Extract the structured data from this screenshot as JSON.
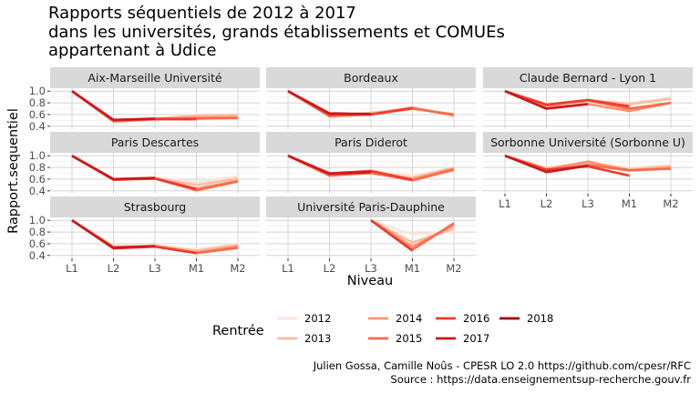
{
  "title_lines": [
    "Rapports séquentiels de 2012 à 2017",
    "dans les universités, grands établissements et COMUEs",
    "appartenant à Udice"
  ],
  "caption_lines": [
    "Julien Gossa, Camille Noûs - CPESR LO 2.0 https://github.com/cpesr/RFC",
    "Source : https://data.enseignementsup-recherche.gouv.fr"
  ],
  "chart_data": {
    "type": "line",
    "title": "Rapports séquentiels de 2012 à 2017 dans les universités, grands établissements et COMUEs appartenant à Udice",
    "xlabel": "Niveau",
    "ylabel": "Rapport.sequentiel",
    "categories": [
      "L1",
      "L2",
      "L3",
      "M1",
      "M2"
    ],
    "y_ticks": [
      "1.0",
      "0.8",
      "0.6",
      "0.4"
    ],
    "y_tick_values": [
      1.0,
      0.8,
      0.6,
      0.4
    ],
    "ylim": [
      0.35,
      1.05
    ],
    "grid": true,
    "legend": {
      "title": "Rentrée",
      "position": "bottom",
      "entries": [
        "2012",
        "2013",
        "2014",
        "2015",
        "2016",
        "2017",
        "2018"
      ],
      "colors": [
        "#fee5d9",
        "#fcbba1",
        "#fc9272",
        "#fb6a4a",
        "#ef3b2c",
        "#cb181d",
        "#99000d"
      ]
    },
    "panels": [
      {
        "name": "Aix-Marseille Université",
        "series": [
          {
            "name": "2012",
            "values": [
              1.0,
              0.47,
              0.52,
              0.6,
              0.6
            ]
          },
          {
            "name": "2013",
            "values": [
              1.0,
              0.49,
              0.53,
              0.58,
              0.59
            ]
          },
          {
            "name": "2014",
            "values": [
              1.0,
              0.48,
              0.52,
              0.55,
              0.55
            ]
          },
          {
            "name": "2015",
            "values": [
              1.0,
              0.5,
              0.53,
              0.53,
              0.54
            ]
          },
          {
            "name": "2016",
            "values": [
              1.0,
              0.5,
              0.52,
              0.52,
              null
            ]
          },
          {
            "name": "2017",
            "values": [
              1.0,
              0.51,
              0.53,
              null,
              null
            ]
          },
          {
            "name": "2018",
            "values": [
              1.0,
              null,
              null,
              null,
              null
            ]
          }
        ]
      },
      {
        "name": "Bordeaux",
        "series": [
          {
            "name": "2012",
            "values": [
              1.0,
              0.57,
              0.62,
              0.72,
              0.6
            ]
          },
          {
            "name": "2013",
            "values": [
              1.0,
              0.58,
              0.63,
              0.71,
              0.59
            ]
          },
          {
            "name": "2014",
            "values": [
              1.0,
              0.57,
              0.61,
              0.72,
              0.58
            ]
          },
          {
            "name": "2015",
            "values": [
              1.0,
              0.58,
              0.6,
              0.7,
              0.6
            ]
          },
          {
            "name": "2016",
            "values": [
              1.0,
              0.6,
              0.6,
              0.71,
              null
            ]
          },
          {
            "name": "2017",
            "values": [
              1.0,
              0.62,
              0.61,
              null,
              null
            ]
          },
          {
            "name": "2018",
            "values": [
              1.0,
              null,
              null,
              null,
              null
            ]
          }
        ]
      },
      {
        "name": "Claude Bernard - Lyon 1",
        "series": [
          {
            "name": "2012",
            "values": [
              1.0,
              0.78,
              0.85,
              0.8,
              0.88
            ]
          },
          {
            "name": "2013",
            "values": [
              1.0,
              0.76,
              0.84,
              0.78,
              0.87
            ]
          },
          {
            "name": "2014",
            "values": [
              1.0,
              0.72,
              0.78,
              0.66,
              0.8
            ]
          },
          {
            "name": "2015",
            "values": [
              1.0,
              0.76,
              0.84,
              0.7,
              0.8
            ]
          },
          {
            "name": "2016",
            "values": [
              1.0,
              0.77,
              0.85,
              0.74,
              null
            ]
          },
          {
            "name": "2017",
            "values": [
              1.0,
              0.7,
              0.78,
              null,
              null
            ]
          },
          {
            "name": "2018",
            "values": [
              1.0,
              null,
              null,
              null,
              null
            ]
          }
        ]
      },
      {
        "name": "Paris Descartes",
        "series": [
          {
            "name": "2012",
            "values": [
              1.0,
              0.6,
              0.62,
              0.55,
              0.65
            ]
          },
          {
            "name": "2013",
            "values": [
              1.0,
              0.6,
              0.62,
              0.5,
              0.61
            ]
          },
          {
            "name": "2014",
            "values": [
              1.0,
              0.6,
              0.61,
              0.44,
              0.57
            ]
          },
          {
            "name": "2015",
            "values": [
              1.0,
              0.6,
              0.61,
              0.41,
              0.56
            ]
          },
          {
            "name": "2016",
            "values": [
              1.0,
              0.59,
              0.61,
              0.43,
              null
            ]
          },
          {
            "name": "2017",
            "values": [
              1.0,
              0.6,
              0.62,
              null,
              null
            ]
          },
          {
            "name": "2018",
            "values": [
              1.0,
              null,
              null,
              null,
              null
            ]
          }
        ]
      },
      {
        "name": "Paris Diderot",
        "series": [
          {
            "name": "2012",
            "values": [
              1.0,
              0.68,
              0.75,
              0.66,
              0.8
            ]
          },
          {
            "name": "2013",
            "values": [
              1.0,
              0.66,
              0.72,
              0.62,
              0.79
            ]
          },
          {
            "name": "2014",
            "values": [
              1.0,
              0.67,
              0.7,
              0.6,
              0.78
            ]
          },
          {
            "name": "2015",
            "values": [
              1.0,
              0.66,
              0.71,
              0.58,
              0.76
            ]
          },
          {
            "name": "2016",
            "values": [
              1.0,
              0.7,
              0.74,
              0.59,
              null
            ]
          },
          {
            "name": "2017",
            "values": [
              1.0,
              0.69,
              0.72,
              null,
              null
            ]
          },
          {
            "name": "2018",
            "values": [
              1.0,
              null,
              null,
              null,
              null
            ]
          }
        ]
      },
      {
        "name": "Sorbonne Université (Sorbonne U)",
        "series": [
          {
            "name": "2012",
            "values": [
              1.0,
              0.8,
              0.88,
              0.79,
              0.84
            ]
          },
          {
            "name": "2013",
            "values": [
              1.0,
              0.78,
              0.87,
              0.77,
              0.82
            ]
          },
          {
            "name": "2014",
            "values": [
              1.0,
              0.77,
              0.9,
              0.75,
              0.79
            ]
          },
          {
            "name": "2015",
            "values": [
              1.0,
              0.75,
              0.84,
              0.75,
              0.78
            ]
          },
          {
            "name": "2016",
            "values": [
              1.0,
              0.76,
              0.82,
              0.66,
              null
            ]
          },
          {
            "name": "2017",
            "values": [
              1.0,
              0.72,
              0.83,
              null,
              null
            ]
          },
          {
            "name": "2018",
            "values": [
              1.0,
              null,
              null,
              null,
              null
            ]
          }
        ]
      },
      {
        "name": "Strasbourg",
        "series": [
          {
            "name": "2012",
            "values": [
              1.0,
              0.55,
              0.56,
              0.5,
              0.6
            ]
          },
          {
            "name": "2013",
            "values": [
              1.0,
              0.54,
              0.57,
              0.48,
              0.58
            ]
          },
          {
            "name": "2014",
            "values": [
              1.0,
              0.55,
              0.56,
              0.45,
              0.55
            ]
          },
          {
            "name": "2015",
            "values": [
              1.0,
              0.53,
              0.55,
              0.44,
              0.53
            ]
          },
          {
            "name": "2016",
            "values": [
              1.0,
              0.52,
              0.55,
              0.44,
              null
            ]
          },
          {
            "name": "2017",
            "values": [
              1.0,
              0.53,
              0.56,
              null,
              null
            ]
          },
          {
            "name": "2018",
            "values": [
              1.0,
              null,
              null,
              null,
              null
            ]
          }
        ]
      },
      {
        "name": "Université Paris-Dauphine",
        "series": [
          {
            "name": "2012",
            "values": [
              null,
              null,
              1.0,
              0.76,
              0.8
            ]
          },
          {
            "name": "2013",
            "values": [
              null,
              null,
              1.0,
              0.62,
              0.86
            ]
          },
          {
            "name": "2014",
            "values": [
              null,
              null,
              1.0,
              0.55,
              0.92
            ]
          },
          {
            "name": "2015",
            "values": [
              null,
              null,
              1.0,
              0.5,
              0.95
            ]
          },
          {
            "name": "2016",
            "values": [
              null,
              null,
              1.0,
              0.48,
              null
            ]
          },
          {
            "name": "2017",
            "values": [
              null,
              null,
              1.0,
              null,
              null
            ]
          },
          {
            "name": "2018",
            "values": [
              null,
              null,
              null,
              null,
              null
            ]
          }
        ]
      }
    ]
  }
}
